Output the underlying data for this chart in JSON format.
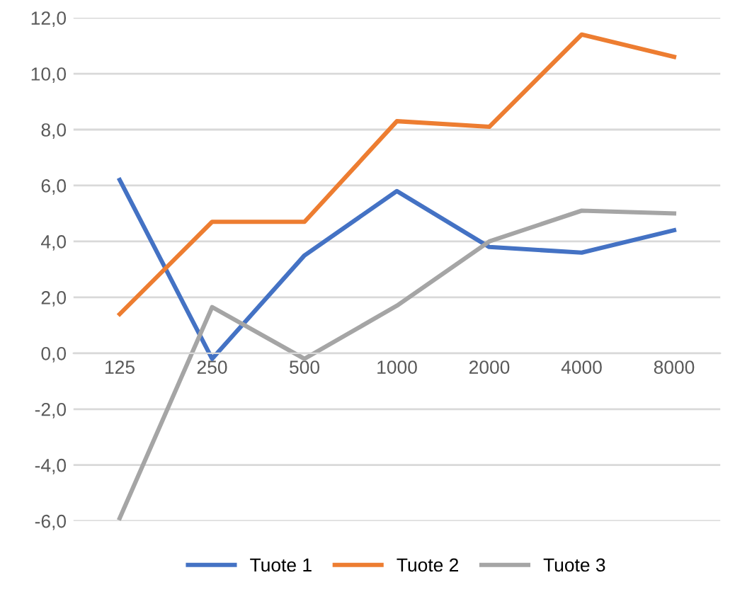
{
  "chart_data": {
    "type": "line",
    "categories": [
      "125",
      "250",
      "500",
      "1000",
      "2000",
      "4000",
      "8000"
    ],
    "series": [
      {
        "name": "Tuote 1",
        "color": "#4472c4",
        "values": [
          6.2,
          -0.2,
          3.5,
          5.8,
          3.8,
          3.6,
          4.4
        ]
      },
      {
        "name": "Tuote 2",
        "color": "#ed7d31",
        "values": [
          1.4,
          4.7,
          4.7,
          8.3,
          8.1,
          11.4,
          10.6
        ]
      },
      {
        "name": "Tuote 3",
        "color": "#a5a5a5",
        "values": [
          -5.9,
          1.65,
          -0.2,
          1.7,
          4.0,
          5.1,
          5.0
        ]
      }
    ],
    "ylim": [
      -6,
      12
    ],
    "yticks": [
      {
        "value": -6,
        "label": "-6,0"
      },
      {
        "value": -4,
        "label": "-4,0"
      },
      {
        "value": -2,
        "label": "-2,0"
      },
      {
        "value": 0,
        "label": "0,0"
      },
      {
        "value": 2,
        "label": "2,0"
      },
      {
        "value": 4,
        "label": "4,0"
      },
      {
        "value": 6,
        "label": "6,0"
      },
      {
        "value": 8,
        "label": "8,0"
      },
      {
        "value": 10,
        "label": "10,0"
      },
      {
        "value": 12,
        "label": "12,0"
      }
    ],
    "grid": "y",
    "legend": "bottom",
    "marker": "none",
    "line_style": "solid"
  }
}
